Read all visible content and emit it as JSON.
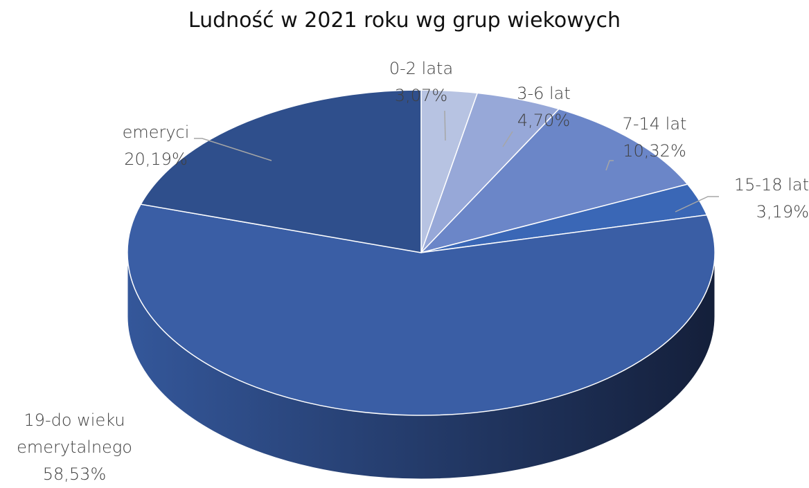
{
  "chart_data": {
    "type": "pie",
    "title": "Ludność w 2021 roku wg grup wiekowych",
    "categories": [
      "0-2 lata",
      "3-6 lat",
      "7-14 lat",
      "15-18 lat",
      "19-do wieku emerytalnego",
      "emeryci"
    ],
    "values": [
      3.07,
      4.7,
      10.32,
      3.19,
      58.53,
      20.19
    ],
    "value_labels": [
      "3,07%",
      "4,70%",
      "10,32%",
      "3,19%",
      "58,53%",
      "20,19%"
    ],
    "colors": [
      "#b7c3e2",
      "#97a8d8",
      "#6b86c8",
      "#3a67b6",
      "#3a5ea5",
      "#2f4f8c"
    ]
  }
}
